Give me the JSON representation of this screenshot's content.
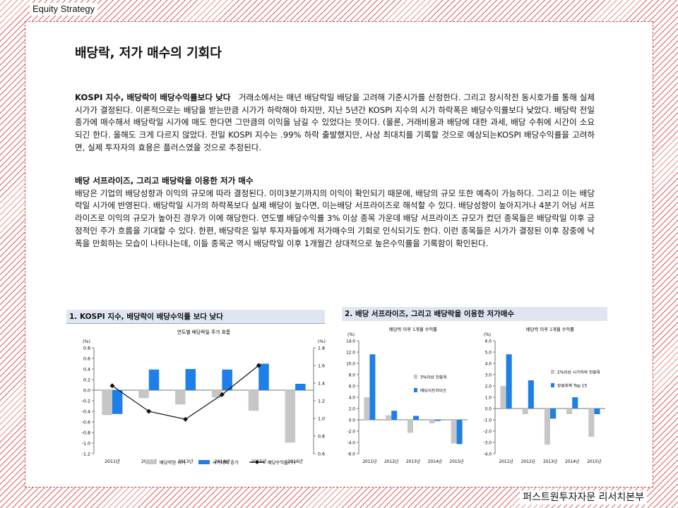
{
  "header": {
    "label": "Equity Strategy"
  },
  "footer": {
    "label": "퍼스트원투자자문 리서치본부"
  },
  "page_title": "배당락, 저가 매수의 기회다",
  "section1": {
    "heading": "KOSPI 지수, 배당락이 배당수익률보다 낮다",
    "body": "거래소에서는 매년 배당락일 배당을 고려해 기준시가를 산정한다. 그리고 장시작전 동시호가를 통해 실제 시가가 결정된다. 이론적으로는 배당을 받는만큼 시가가 하락해야 하지만, 지난 5년간 KOSPI 지수의 시가 하락폭은 배당수익률보다 낮았다. 배당락 전일 종가에 매수해서 배당락일 시가에 매도 한다면 그만큼의 이익을 남길 수 있었다는 뜻이다. (물론, 거래비용과 배당에 대한 과세, 배당 수취에 시간이 소요되긴 한다. 올해도 크게 다르지 않았다. 전일 KOSPI 지수는 .99% 하락 출발했지만, 사상 최대치를 기록할 것으로 예상되는KOSPI 배당수익률을 고려하면, 실제 투자자의 효용은 플러스였을 것으로 추정된다."
  },
  "section2": {
    "heading": "배당 서프라이즈, 그리고 배당락을 이용한 저가 매수",
    "body": "배당은 기업의 배당성향과 이익의 규모에 따라 결정된다. 이미3분기까지의 이익이 확인되기 때문에, 배당의 규모 또한 예측이 가능하다. 그리고 이는 배당락일 시가에 반영된다. 배당락일 시가의 하락폭보다 실제 배당이 높다면, 이는배당 서프라이즈로 해석할 수 있다. 배당성향이 높아지거나 4분기 어닝 서프라이즈로 이익의 규모가 높아진 경우가 이에 해당한다. 연도별 배당수익률 3% 이상 종목 가운데 배당 서프라이즈 규모가 컸던 종목들은 배당락일 이후 긍정적인 주가 흐름을 기대할 수 있다. 한편, 배당락은 일부 투자자들에게 저가매수의 기회로 인식되기도 한다. 이런 종목들은 시가가 결정된 이후 장중에 낙폭을 만회하는 모습이 나타나는데, 이들 종목군 역시 배당락일 이후 1개월간 상대적으로 높은수익률을 기록함이 확인된다."
  },
  "chart1_heading": "1. KOSPI 지수, 배당락이 배당수익률 보다 낮다",
  "chart2_heading": "2. 배당 서프라이즈, 그리고 배당락을 이용한 저가매수",
  "colors": {
    "gray": "#c6c6c6",
    "blue": "#1f7fe8",
    "line": "#111111"
  },
  "chart_data": [
    {
      "type": "bar",
      "title": "연도별 배당락일 주가 흐름",
      "ylabel_left": "(%)",
      "ylabel_right": "(%)",
      "categories": [
        "2011년",
        "2012년",
        "2013년",
        "2014년",
        "2015년",
        "2016년"
      ],
      "ylim": [
        -1.2,
        0.8
      ],
      "ylim_right": [
        0.6,
        1.8
      ],
      "yticks": [
        "0.8",
        "0.6",
        "0.4",
        "0.2",
        "0.0",
        "-0.2",
        "-0.4",
        "-0.6",
        "-0.8",
        "-1.0",
        "-1.2"
      ],
      "yticks_right": [
        "1.8",
        "1.6",
        "1.4",
        "1.2",
        "1.0",
        "0.8",
        "0.6"
      ],
      "series": [
        {
          "name": "배당락일 시가",
          "color": "#c6c6c6",
          "values": [
            -0.47,
            -0.15,
            -0.27,
            -0.14,
            -0.39,
            -0.99
          ]
        },
        {
          "name": "시가대비 종가",
          "color": "#1f7fe8",
          "values": [
            -0.45,
            0.39,
            0.4,
            0.39,
            0.5,
            0.12
          ]
        },
        {
          "name": "배당수익률(우)",
          "color": "#111111",
          "type": "line",
          "axis": "right",
          "values": [
            1.37,
            1.08,
            0.99,
            1.27,
            1.6,
            null
          ]
        }
      ]
    },
    {
      "type": "bar",
      "title": "배당락 이후 1개월 수익률",
      "ylabel": "(%)",
      "categories": [
        "2011년",
        "2012년",
        "2013년",
        "2014년",
        "2015년"
      ],
      "ylim": [
        -6.0,
        14.0
      ],
      "yticks": [
        "14.0",
        "12.0",
        "10.0",
        "8.0",
        "6.0",
        "4.0",
        "2.0",
        "0.0",
        "-2.0",
        "-4.0",
        "-6.0"
      ],
      "series": [
        {
          "name": "3%이상 전종목",
          "color": "#c6c6c6",
          "values": [
            4.0,
            0.8,
            -2.3,
            -0.6,
            -4.2
          ]
        },
        {
          "name": "배당서프라이즈",
          "color": "#1f7fe8",
          "values": [
            11.6,
            1.6,
            0.7,
            -0.2,
            -4.3
          ]
        }
      ]
    },
    {
      "type": "bar",
      "title": "배당락 이후 1개월 수익률",
      "ylabel": "(%)",
      "categories": [
        "2011년",
        "2012년",
        "2013년",
        "2014년",
        "2015년"
      ],
      "ylim": [
        -4.0,
        6.0
      ],
      "yticks": [
        "6.0",
        "5.0",
        "4.0",
        "3.0",
        "2.0",
        "1.0",
        "0.0",
        "-1.0",
        "-2.0",
        "-3.0",
        "-4.0"
      ],
      "series": [
        {
          "name": "2%이상 시가하락 전종목",
          "color": "#c6c6c6",
          "values": [
            2.0,
            -0.5,
            -3.2,
            -0.5,
            -2.5
          ]
        },
        {
          "name": "장중회복 Top 15",
          "color": "#1f7fe8",
          "values": [
            4.8,
            2.5,
            -0.9,
            1.0,
            -0.5
          ]
        }
      ]
    }
  ]
}
